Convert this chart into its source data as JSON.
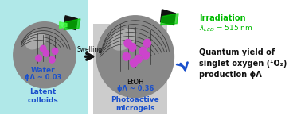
{
  "fig_width": 3.78,
  "fig_height": 1.46,
  "dpi": 100,
  "bg_color": "#ffffff",
  "left_bg": "#b0e8e8",
  "right_text_color": "#1a1a1a",
  "blue_text": "#1a50cc",
  "green_text": "#00bb00",
  "irradiation_label": "Irradiation",
  "lambda_led": "λ",
  "led_sub": "LED",
  "led_value": " = 515 nm",
  "quantum_yield_line1": "Quantum yield of",
  "quantum_yield_line2": "singlet oxygen (",
  "quantum_yield_superscript": "1",
  "quantum_yield_o2": "O",
  "quantum_yield_sub2": "2",
  "quantum_yield_line3": "production ϕ",
  "quantum_yield_sub3": "Λ",
  "swelling_text": "Swelling",
  "water_label": "Water",
  "water_phi": "ϕΛ ~ 0.03",
  "latent_label": "Latent\ncolloids",
  "etoh_label": "EtOH",
  "etoh_phi": "ϕΛ ~ 0.36",
  "photoactive_label": "Photoactive\nmicrogels",
  "sphere1_color": "#888888",
  "sphere2_color": "#aaaaaa",
  "network_color": "#333333",
  "dye_color": "#cc44cc",
  "arrow_color": "#1a50cc",
  "dark_arrow_color": "#111111"
}
